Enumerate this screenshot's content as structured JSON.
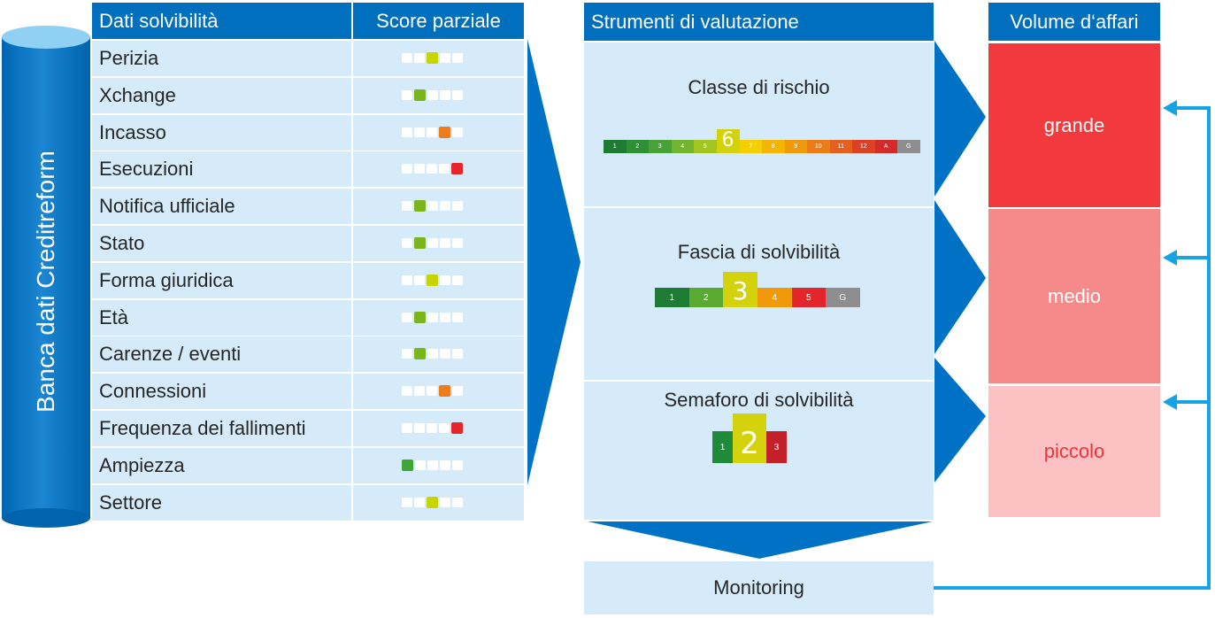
{
  "database": {
    "label": "Banca dati Creditreform"
  },
  "table": {
    "header_data": "Dati solvibilità",
    "header_score": "Score parziale",
    "rows": [
      {
        "label": "Perizia",
        "level": 3,
        "color": "#c8d400"
      },
      {
        "label": "Xchange",
        "level": 2,
        "color": "#7ab51d"
      },
      {
        "label": "Incasso",
        "level": 4,
        "color": "#ee7d1f"
      },
      {
        "label": "Esecuzioni",
        "level": 5,
        "color": "#e3262b"
      },
      {
        "label": "Notifica ufficiale",
        "level": 2,
        "color": "#7ab51d"
      },
      {
        "label": "Stato",
        "level": 2,
        "color": "#7ab51d"
      },
      {
        "label": "Forma giuridica",
        "level": 3,
        "color": "#c8d400"
      },
      {
        "label": "Età",
        "level": 2,
        "color": "#7ab51d"
      },
      {
        "label": "Carenze / eventi",
        "level": 2,
        "color": "#7ab51d"
      },
      {
        "label": "Connessioni",
        "level": 4,
        "color": "#ee7d1f"
      },
      {
        "label": "Frequenza dei fallimenti",
        "level": 5,
        "color": "#e3262b"
      },
      {
        "label": "Ampiezza",
        "level": 1,
        "color": "#3fa535"
      },
      {
        "label": "Settore",
        "level": 3,
        "color": "#c8d400"
      }
    ]
  },
  "tools": {
    "header": "Strumenti di valutazione",
    "risk_class": {
      "title": "Classe di rischio",
      "selected": "6",
      "segments": [
        {
          "label": "1",
          "color": "#1e7b33"
        },
        {
          "label": "2",
          "color": "#2f8f35"
        },
        {
          "label": "3",
          "color": "#49a238"
        },
        {
          "label": "4",
          "color": "#73b52e"
        },
        {
          "label": "5",
          "color": "#a4c51f"
        },
        {
          "label": "6",
          "color": "#d4d20c"
        },
        {
          "label": "7",
          "color": "#f5d000"
        },
        {
          "label": "8",
          "color": "#f5b400"
        },
        {
          "label": "9",
          "color": "#f09a0b"
        },
        {
          "label": "10",
          "color": "#ea7d18"
        },
        {
          "label": "11",
          "color": "#e4601f"
        },
        {
          "label": "12",
          "color": "#de4024"
        },
        {
          "label": "A",
          "color": "#d42a2a"
        },
        {
          "label": "G",
          "color": "#8e8e8e"
        }
      ]
    },
    "solvency_band": {
      "title": "Fascia di solvibilità",
      "selected": "3",
      "segments": [
        {
          "label": "1",
          "color": "#1e7b33"
        },
        {
          "label": "2",
          "color": "#5aaa31"
        },
        {
          "label": "3",
          "color": "#d4d20c"
        },
        {
          "label": "4",
          "color": "#f09a0b"
        },
        {
          "label": "5",
          "color": "#e3262b"
        },
        {
          "label": "G",
          "color": "#8e8e8e"
        }
      ]
    },
    "traffic_light": {
      "title": "Semaforo di solvibilità",
      "selected": "2",
      "segments": [
        {
          "label": "1",
          "color": "#1e8a3a"
        },
        {
          "label": "2",
          "color": "#d4d20c"
        },
        {
          "label": "3",
          "color": "#c4202a"
        }
      ]
    }
  },
  "volume": {
    "header": "Volume d‘affari",
    "items": [
      {
        "label": "grande",
        "bg": "#f23a3e",
        "fg": "#ffffff"
      },
      {
        "label": "medio",
        "bg": "#f58a8b",
        "fg": "#ffffff"
      },
      {
        "label": "piccolo",
        "bg": "#fcc1c2",
        "fg": "#e8363a"
      }
    ]
  },
  "monitoring": {
    "label": "Monitoring"
  },
  "colors": {
    "header_blue": "#006fbd",
    "panel_light": "#d5ebf9",
    "arrow_blue": "#0072c6",
    "line_blue": "#16a3e6"
  }
}
